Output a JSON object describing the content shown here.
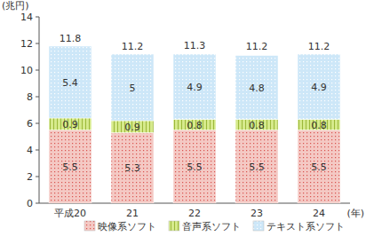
{
  "chart_data": {
    "type": "bar",
    "stacked": true,
    "data_labels": true,
    "grid": false,
    "legend": "bottom",
    "x_label": "(年)",
    "y_label": "(兆円)",
    "categories": [
      "平成20",
      "21",
      "22",
      "23",
      "24"
    ],
    "series": [
      {
        "name": "映像系ソフト",
        "color": "#f4c9c4",
        "values": [
          5.5,
          5.3,
          5.5,
          5.5,
          5.5
        ]
      },
      {
        "name": "音声系ソフト",
        "color": "#d6ea8c",
        "values": [
          0.9,
          0.9,
          0.8,
          0.8,
          0.8
        ]
      },
      {
        "name": "テキスト系ソフト",
        "color": "#cde7f8",
        "values": [
          5.4,
          5.0,
          4.9,
          4.8,
          4.9
        ]
      }
    ],
    "totals": [
      11.8,
      11.2,
      11.3,
      11.2,
      11.2
    ],
    "ylim": [
      0,
      14
    ],
    "yticks": [
      0,
      2,
      4,
      6,
      8,
      10,
      12,
      14
    ]
  }
}
